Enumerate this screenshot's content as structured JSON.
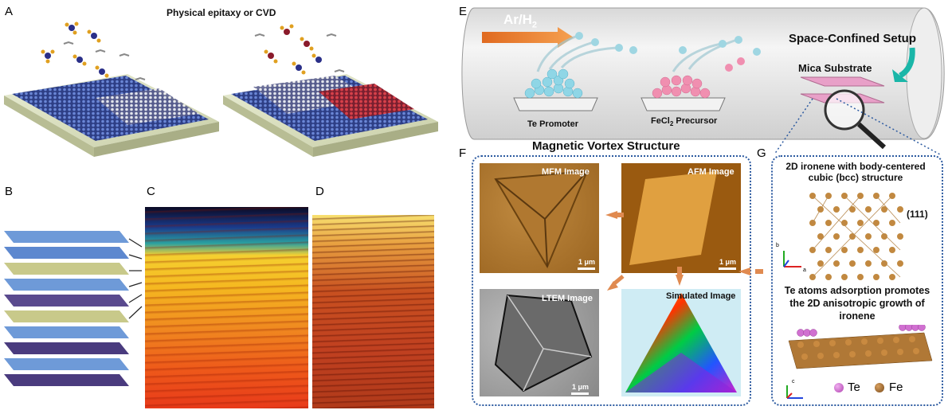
{
  "panels": {
    "A": {
      "label": "A",
      "title": "Physical epitaxy or CVD"
    },
    "B": {
      "label": "B"
    },
    "C": {
      "label": "C"
    },
    "D": {
      "label": "D"
    },
    "E": {
      "label": "E",
      "gas": "Ar/H",
      "gas_sub": "2",
      "setup": "Space-Confined Setup",
      "substrate": "Mica Substrate",
      "promoter": "Te Promoter",
      "precursor_pre": "FeCl",
      "precursor_sub": "2",
      "precursor_post": " Precursor"
    },
    "F": {
      "label": "F",
      "title": "Magnetic Vortex Structure",
      "mfm": "MFM Image",
      "afm": "AFM Image",
      "ltem": "LTEM Image",
      "sim": "Simulated Image",
      "scale1": "1 μm",
      "scale2": "1 μm",
      "scale3": "1 μm"
    },
    "G": {
      "label": "G",
      "title": "2D ironene with body-centered cubic (bcc) structure",
      "miller": "(111)",
      "caption": "Te atoms adsorption promotes the 2D anisotropic growth of ironene",
      "legend_te": "Te",
      "legend_fe": "Fe",
      "axis_a": "a",
      "axis_b": "b",
      "axis_c": "c"
    }
  },
  "colors": {
    "substrate_blue": "#3b4f9a",
    "te_cyan": "#8fd6e6",
    "fecl2_pink": "#f08fb0",
    "fe_brown": "#b8762a",
    "te_purple": "#d070d0",
    "border_blue": "#2c5aa0",
    "arrow_orange": "#e07a3a"
  }
}
